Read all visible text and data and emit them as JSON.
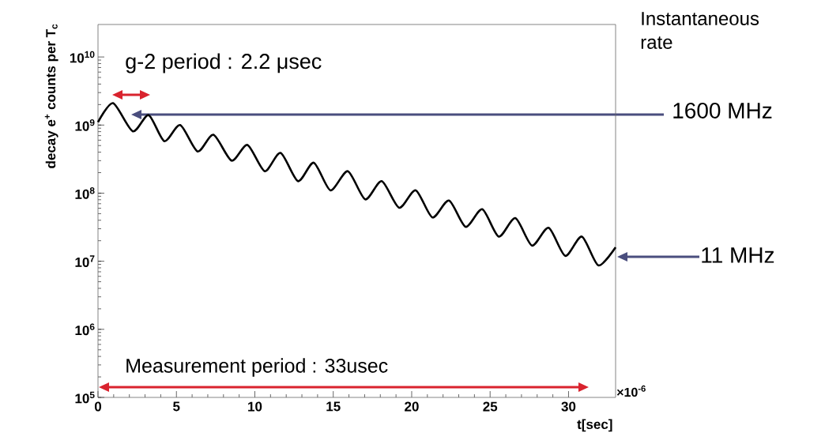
{
  "chart_data": {
    "type": "line",
    "xlabel": "t[sec]",
    "ylabel": "decay e$^{+}$ counts per T$_{c}$",
    "log": "y",
    "xlim": [
      0,
      33
    ],
    "ylim": [
      100000,
      30000000000
    ],
    "xticks": [
      0,
      5,
      10,
      15,
      20,
      25,
      30
    ],
    "yticks": [
      {
        "value": 100000,
        "label": "10$^{5}$"
      },
      {
        "value": 1000000,
        "label": "10$^{6}$"
      },
      {
        "value": 10000000,
        "label": "10$^{7}$"
      },
      {
        "value": 100000000,
        "label": "10$^{8}$"
      },
      {
        "value": 1000000000,
        "label": "10$^{9}$"
      },
      {
        "value": 10000000000,
        "label": "10$^{10}$"
      }
    ],
    "color": "#000000",
    "x": [
      0,
      0.96,
      2.22,
      3.23,
      4.23,
      5.24,
      6.35,
      7.36,
      8.52,
      9.53,
      10.63,
      11.64,
      12.75,
      13.76,
      14.82,
      15.93,
      17.04,
      18.09,
      19.2,
      20.26,
      21.32,
      22.38,
      23.44,
      24.5,
      25.55,
      26.61,
      27.67,
      28.73,
      29.79,
      30.85,
      31.9,
      33
    ],
    "values": [
      1100000000.0,
      2100000000.0,
      810000000.0,
      1400000000.0,
      580000000.0,
      1000000000.0,
      410000000.0,
      720000000.0,
      300000000.0,
      510000000.0,
      210000000.0,
      390000000.0,
      150000000.0,
      280000000.0,
      110000000.0,
      210000000.0,
      81000000.0,
      150000000.0,
      61000000.0,
      110000000.0,
      44000000.0,
      78000000.0,
      32000000.0,
      58000000.0,
      23000000.0,
      43000000.0,
      17000000.0,
      31000000.0,
      12000000.0,
      23000000.0,
      8700000.0,
      16000000.0
    ],
    "annotations": [
      "g-2 period : 2.2 μsec",
      "Measurement period :    33usec",
      "Instantaneous rate",
      "1600 MHz",
      "11 MHz",
      "×10$^{-6}$"
    ]
  }
}
